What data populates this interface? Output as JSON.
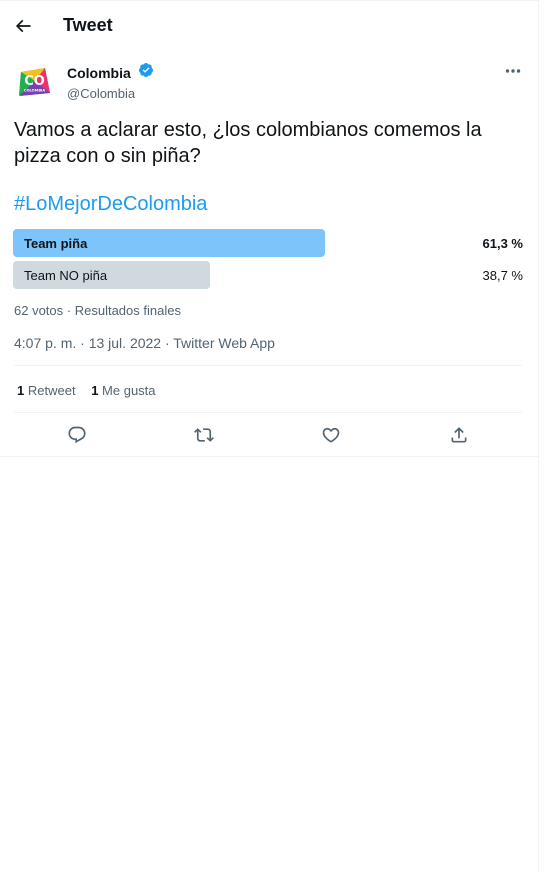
{
  "header": {
    "title": "Tweet",
    "back_icon": "arrow-left-icon"
  },
  "author": {
    "display_name": "Colombia",
    "handle": "@Colombia",
    "verified": true,
    "avatar_text": "CO",
    "avatar_subtext": "COLOMBIA"
  },
  "tweet": {
    "text": "Vamos a aclarar esto, ¿los colombianos comemos la pizza con o sin piña?",
    "hashtag": "#LoMejorDeColombia"
  },
  "poll": {
    "options": [
      {
        "label": "Team piña",
        "percent": "61,3 %",
        "value": 61.3,
        "winner": true
      },
      {
        "label": "Team NO piña",
        "percent": "38,7 %",
        "value": 38.7,
        "winner": false
      }
    ],
    "votes": "62 votos",
    "status": "Resultados finales",
    "separator": " · "
  },
  "meta": {
    "timestamp": "4:07 p. m. · 13 jul. 2022 · Twitter Web App"
  },
  "stats": {
    "retweets_count": "1",
    "retweets_label": "Retweet",
    "likes_count": "1",
    "likes_label": "Me gusta"
  },
  "colors": {
    "accent": "#1d9bf0",
    "winner_bar": "#7cc4f9",
    "loser_bar": "#cfd9de",
    "secondary_text": "#536471"
  }
}
